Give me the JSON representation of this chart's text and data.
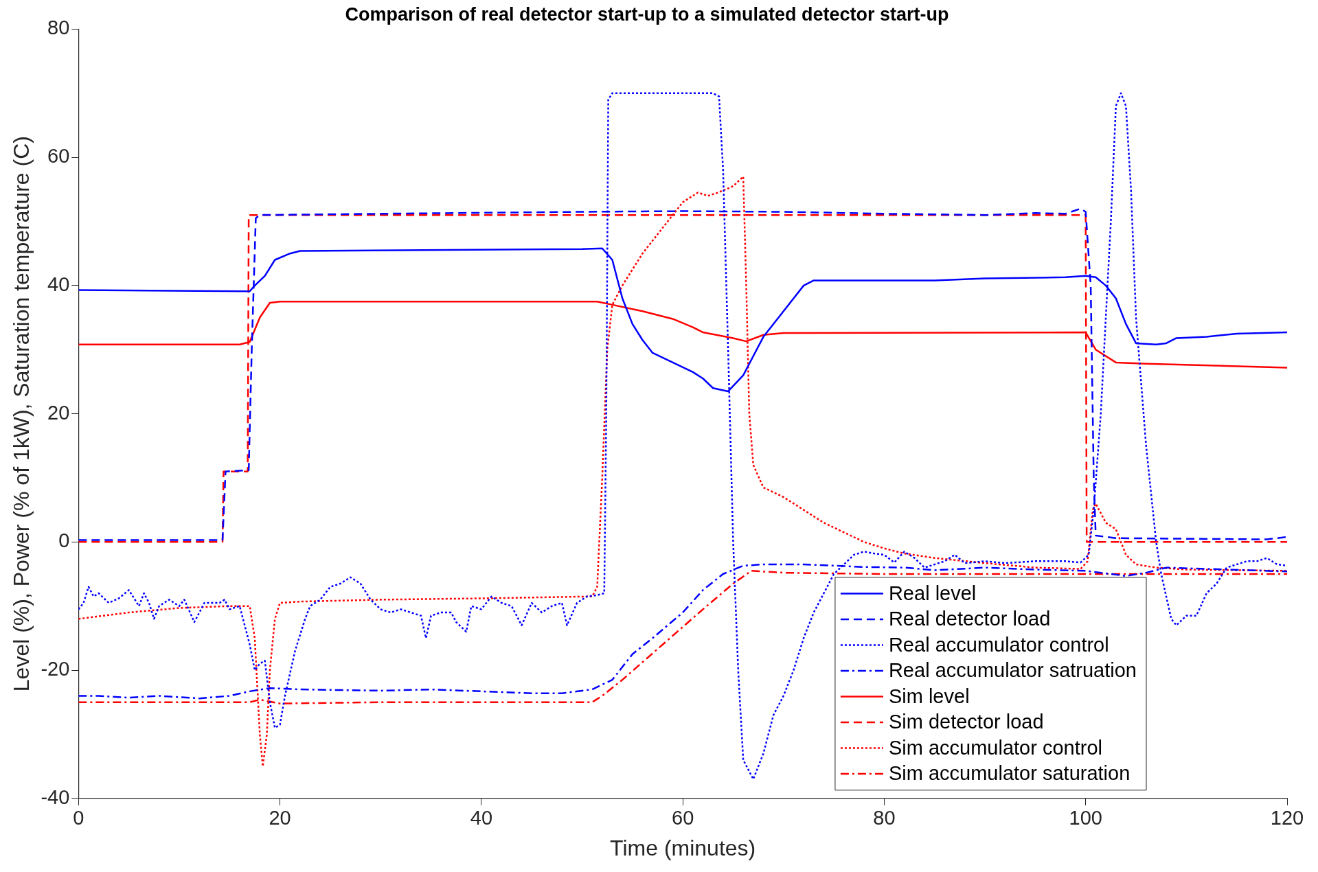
{
  "chart_data": {
    "type": "line",
    "title": "Comparison of real detector start-up to a simulated detector start-up",
    "xlabel": "Time (minutes)",
    "ylabel": "Level (%), Power (% of 1kW), Saturation temperature (C)",
    "xlim": [
      0,
      120
    ],
    "xticks": [
      0,
      20,
      40,
      60,
      80,
      100,
      120
    ],
    "ylim": [
      -40,
      80
    ],
    "yticks": [
      -40,
      -20,
      0,
      20,
      40,
      60,
      80
    ],
    "grid": false,
    "legend": "bottom right",
    "marker": "none",
    "series": [
      {
        "name": "Real level",
        "color": "#0000ff",
        "line_style": "solid",
        "x": [
          0,
          17,
          17.5,
          18.5,
          19.5,
          21,
          22,
          50,
          52,
          53,
          54,
          55,
          56,
          57,
          59,
          61,
          62,
          63,
          64.5,
          66,
          68,
          70,
          72,
          73,
          75,
          85,
          90,
          98,
          100,
          101,
          102,
          103,
          104,
          105,
          107,
          108,
          109,
          112,
          115,
          120
        ],
        "values": [
          39.3,
          39.1,
          40,
          41.5,
          44,
          45,
          45.4,
          45.7,
          45.8,
          44,
          38,
          34,
          31.5,
          29.5,
          28,
          26.5,
          25.5,
          24,
          23.5,
          26,
          32,
          36,
          40,
          40.8,
          40.8,
          40.8,
          41.1,
          41.3,
          41.5,
          41.3,
          40,
          38,
          34,
          31,
          30.8,
          31,
          31.8,
          32,
          32.5,
          32.7
        ]
      },
      {
        "name": "Real detector load",
        "color": "#0000ff",
        "line_style": "dashed",
        "x": [
          0,
          14.3,
          14.6,
          16.9,
          17.2,
          17.6,
          18,
          30,
          50,
          60,
          70,
          80,
          90,
          95,
          98,
          99.5,
          100,
          100.5,
          100.8,
          101,
          102,
          103,
          110,
          118,
          120
        ],
        "values": [
          0.3,
          0.3,
          11,
          11.2,
          30,
          50.5,
          51,
          51.2,
          51.5,
          51.6,
          51.5,
          51.2,
          51,
          51.3,
          51.2,
          52,
          51.5,
          40,
          10,
          1,
          0.8,
          0.6,
          0.5,
          0.4,
          0.8
        ]
      },
      {
        "name": "Real accumulator control",
        "color": "#0000ff",
        "line_style": "dotted",
        "x": [
          0,
          0.5,
          1,
          1.5,
          2,
          3,
          4,
          5,
          6,
          6.5,
          7,
          7.5,
          8,
          9,
          10,
          10.5,
          11.5,
          12.5,
          14,
          14.5,
          15,
          16,
          17,
          17.5,
          18,
          18.5,
          19,
          19.5,
          20,
          20.5,
          21.5,
          22.5,
          23,
          24,
          25,
          26,
          27,
          28,
          29,
          30,
          31,
          32,
          33,
          34,
          34.5,
          35,
          36,
          37,
          37.5,
          38.5,
          39,
          40,
          41,
          42,
          43,
          44,
          45,
          46,
          47,
          48,
          48.5,
          49.5,
          50.5,
          51.5,
          52.2,
          52.4,
          52.6,
          53,
          58,
          63,
          63.6,
          64,
          64.5,
          65,
          65.5,
          66,
          67,
          67.5,
          68,
          69,
          70,
          71,
          72,
          73,
          74,
          75,
          76,
          77,
          78,
          79,
          80,
          81,
          82,
          83,
          84,
          85,
          86,
          87,
          88,
          90,
          92,
          95,
          98,
          99.5,
          100.3,
          100.8,
          101.5,
          102.5,
          103,
          103.5,
          104,
          104.5,
          105,
          106,
          107,
          107.5,
          108.5,
          109,
          110,
          111,
          112,
          113,
          114,
          116,
          117,
          118,
          119,
          120
        ],
        "values": [
          -10.5,
          -9.5,
          -7,
          -8.5,
          -8,
          -9.5,
          -8.8,
          -7.5,
          -10,
          -8,
          -9.5,
          -12,
          -10,
          -9,
          -10,
          -9,
          -12.5,
          -9.5,
          -9.5,
          -9,
          -10.5,
          -10,
          -16,
          -20,
          -19,
          -18.5,
          -25,
          -29,
          -28.5,
          -24,
          -17,
          -12,
          -10,
          -9,
          -7,
          -6.5,
          -5.5,
          -6.5,
          -9,
          -10.5,
          -11,
          -10.5,
          -11,
          -11.5,
          -15,
          -11.5,
          -11,
          -11,
          -12.5,
          -14,
          -10,
          -10.5,
          -8.5,
          -9.5,
          -10,
          -13,
          -9.5,
          -11,
          -10,
          -9.5,
          -13,
          -9.5,
          -8.5,
          -8.3,
          -8,
          20,
          69,
          70,
          70,
          70,
          69.5,
          58,
          30,
          0,
          -20,
          -34,
          -37,
          -35,
          -33,
          -27,
          -24,
          -20,
          -15,
          -11,
          -8,
          -5,
          -3.5,
          -2,
          -1.5,
          -1.8,
          -2,
          -3.2,
          -1.5,
          -2.5,
          -4,
          -3.5,
          -3,
          -2,
          -3.3,
          -3,
          -3.3,
          -3,
          -3,
          -3.2,
          -2,
          5,
          20,
          50,
          68,
          70,
          68,
          55,
          35,
          15,
          0,
          -5,
          -12,
          -13,
          -11.5,
          -11.5,
          -8,
          -6.5,
          -4,
          -3,
          -3,
          -2.5,
          -3.5,
          -3.7
        ]
      },
      {
        "name": "Real accumulator satruation",
        "color": "#0000ff",
        "line_style": "dashdot",
        "x": [
          0,
          2,
          5,
          8,
          12,
          15,
          17,
          19,
          22,
          30,
          35,
          40,
          45,
          48,
          51,
          53,
          55,
          57,
          60,
          62,
          64,
          66,
          68,
          72,
          78,
          82,
          85,
          90,
          95,
          100,
          104,
          106,
          108,
          112,
          120
        ],
        "values": [
          -24,
          -24,
          -24.3,
          -24,
          -24.4,
          -24,
          -23.3,
          -22.8,
          -23,
          -23.2,
          -23,
          -23.3,
          -23.6,
          -23.6,
          -23,
          -21.5,
          -17.5,
          -15,
          -11,
          -7.5,
          -5,
          -3.7,
          -3.5,
          -3.5,
          -3.9,
          -4,
          -4.4,
          -4,
          -4.3,
          -4.5,
          -5.3,
          -4.8,
          -4,
          -4.2,
          -4.6
        ]
      },
      {
        "name": "Sim level",
        "color": "#ff0000",
        "line_style": "solid",
        "x": [
          0,
          16,
          17,
          18,
          19,
          20,
          51.5,
          53,
          56,
          59,
          61,
          62,
          65,
          66.3,
          68,
          70,
          100,
          101,
          103,
          106,
          120
        ],
        "values": [
          30.8,
          30.8,
          31.2,
          35,
          37.3,
          37.5,
          37.5,
          37,
          36,
          34.8,
          33.5,
          32.7,
          31.8,
          31.3,
          32.3,
          32.6,
          32.7,
          30,
          28,
          27.8,
          27.2
        ]
      },
      {
        "name": "Sim detector load",
        "color": "#ff0000",
        "line_style": "dashed",
        "x": [
          0,
          14.3,
          14.4,
          16.8,
          16.9,
          100,
          100.1,
          120
        ],
        "values": [
          0,
          0,
          11,
          11,
          51,
          51,
          0,
          0
        ]
      },
      {
        "name": "Sim accumulator control",
        "color": "#ff0000",
        "line_style": "dotted",
        "x": [
          0,
          5,
          10,
          15,
          17,
          17.5,
          18,
          18.3,
          18.7,
          19,
          19.5,
          20,
          22,
          30,
          40,
          51,
          51.5,
          52,
          52.5,
          53,
          54,
          56,
          58,
          60,
          61.5,
          62.5,
          63.5,
          65,
          66,
          66.3,
          66.6,
          67,
          68,
          70,
          72,
          74,
          76,
          78,
          80,
          82,
          85,
          90,
          95,
          99.5,
          100.2,
          100.7,
          101,
          102,
          103,
          104,
          105,
          107,
          110,
          120
        ],
        "values": [
          -12,
          -11,
          -10.3,
          -10,
          -10,
          -15,
          -30,
          -35,
          -30,
          -20,
          -12,
          -9.5,
          -9.3,
          -9,
          -8.8,
          -8.5,
          -7,
          10,
          30,
          37,
          40,
          45,
          49,
          53,
          54.5,
          54,
          54.5,
          55.5,
          57,
          40,
          20,
          12,
          8.5,
          7,
          5,
          3,
          1.5,
          0,
          -1,
          -1.8,
          -2.5,
          -3.3,
          -4,
          -4.2,
          -3,
          5,
          6,
          3,
          2,
          -2,
          -3.5,
          -4,
          -4.3,
          -4.5
        ]
      },
      {
        "name": "Sim accumulator saturation",
        "color": "#ff0000",
        "line_style": "dashdot",
        "x": [
          0,
          17,
          18,
          20,
          30,
          51,
          52,
          54,
          58,
          62,
          65,
          66.8,
          70,
          80,
          100,
          120
        ],
        "values": [
          -25,
          -25,
          -24.6,
          -25.2,
          -25,
          -25,
          -24,
          -21.5,
          -16,
          -10.5,
          -6.5,
          -4.5,
          -4.8,
          -5,
          -5,
          -5
        ]
      }
    ]
  }
}
